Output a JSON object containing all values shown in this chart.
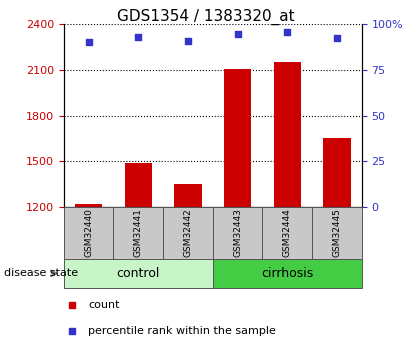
{
  "title": "GDS1354 / 1383320_at",
  "samples": [
    "GSM32440",
    "GSM32441",
    "GSM32442",
    "GSM32443",
    "GSM32444",
    "GSM32445"
  ],
  "count_values": [
    1222,
    1490,
    1350,
    2105,
    2150,
    1650
  ],
  "percentile_values": [
    2285,
    2315,
    2290,
    2335,
    2350,
    2310
  ],
  "ylim_left": [
    1200,
    2400
  ],
  "ylim_right": [
    0,
    100
  ],
  "yticks_left": [
    1200,
    1500,
    1800,
    2100,
    2400
  ],
  "yticks_right": [
    0,
    25,
    50,
    75,
    100
  ],
  "ytick_right_labels": [
    "0",
    "25",
    "50",
    "75",
    "100%"
  ],
  "bar_color": "#cc0000",
  "dot_color": "#3333cc",
  "control_light": "#c8f5c8",
  "cirrhosis_green": "#44cc44",
  "sample_box_color": "#c8c8c8",
  "group_label_control": "control",
  "group_label_cirrhosis": "cirrhosis",
  "disease_state_label": "disease state",
  "legend_count": "count",
  "legend_percentile": "percentile rank within the sample",
  "title_fontsize": 11,
  "left_tick_color": "#cc0000",
  "right_tick_color": "#3333cc"
}
